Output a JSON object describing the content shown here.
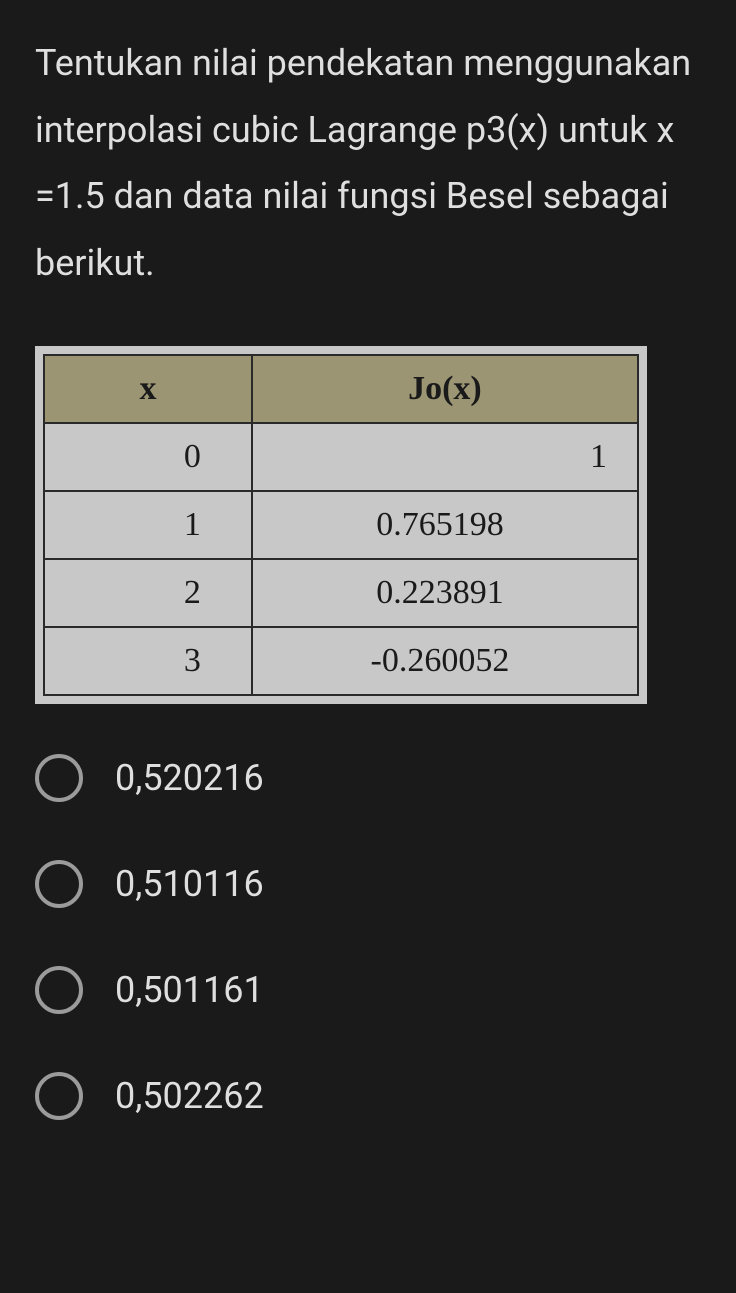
{
  "question": {
    "text": "Tentukan nilai pendekatan menggunakan interpolasi cubic Lagrange p3(x) untuk x =1.5 dan data nilai fungsi Besel sebagai berikut."
  },
  "table": {
    "headers": [
      "x",
      "Jo(x)"
    ],
    "rows": [
      [
        "0",
        "1"
      ],
      [
        "1",
        "0.765198"
      ],
      [
        "2",
        "0.223891"
      ],
      [
        "3",
        "-0.260052"
      ]
    ],
    "header_bg": "#9b9573",
    "cell_bg": "#c8c8c8",
    "border_color": "#2a2a2a"
  },
  "options": [
    {
      "label": "0,520216"
    },
    {
      "label": "0,510116"
    },
    {
      "label": "0,501161"
    },
    {
      "label": "0,502262"
    }
  ]
}
